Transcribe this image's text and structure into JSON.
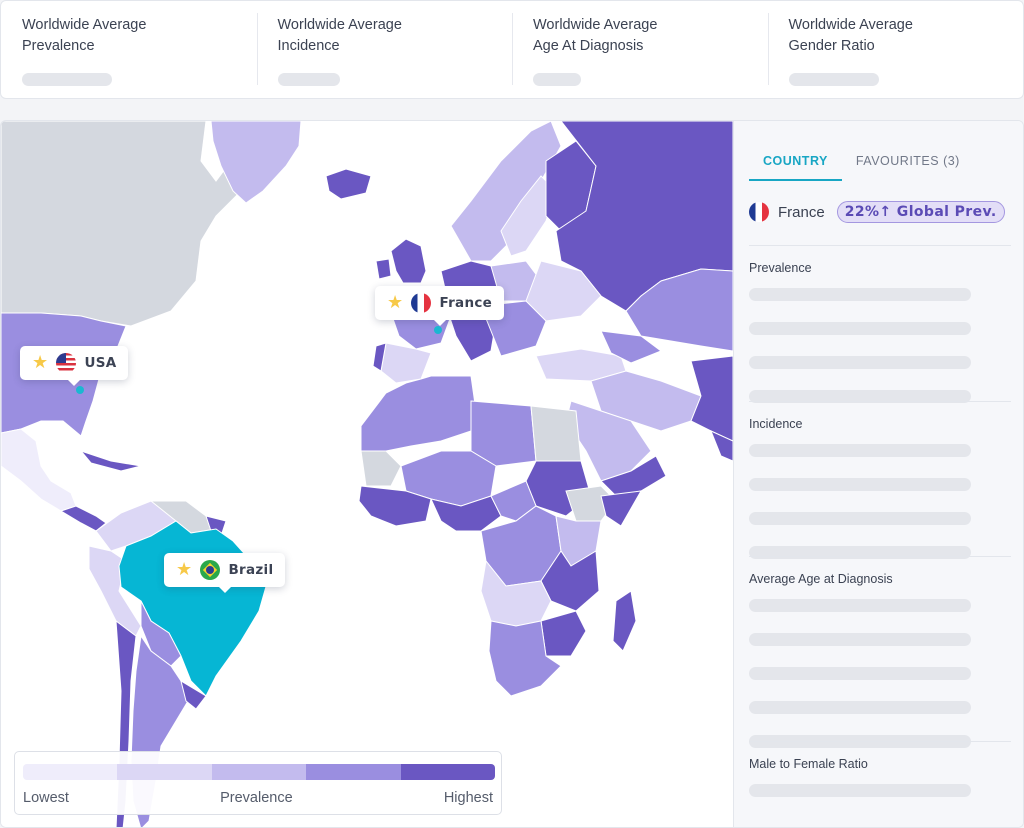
{
  "stats": [
    {
      "label": "Worldwide Average Prevalence"
    },
    {
      "label": "Worldwide Average Incidence"
    },
    {
      "label": "Worldwide Average Age At Diagnosis"
    },
    {
      "label": "Worldwide Average Gender Ratio"
    }
  ],
  "pins": {
    "usa": {
      "name": "USA"
    },
    "france": {
      "name": "France"
    },
    "brazil": {
      "name": "Brazil"
    }
  },
  "legend": {
    "low_label": "Lowest",
    "mid_label": "Prevalence",
    "high_label": "Highest",
    "colors": [
      "#efedfb",
      "#dcd7f5",
      "#c3bbee",
      "#9a8ee0",
      "#6a57c2"
    ]
  },
  "panel": {
    "tabs": [
      {
        "label": "COUNTRY",
        "active": true
      },
      {
        "label": "FAVOURITES (3)",
        "active": false
      }
    ],
    "country": {
      "name": "France",
      "chip": "22%↑ Global Prev."
    },
    "sections": [
      {
        "title": "Prevalence"
      },
      {
        "title": "Incidence"
      },
      {
        "title": "Average Age at Diagnosis"
      },
      {
        "title": "Male to Female Ratio"
      }
    ]
  },
  "colors": {
    "accent": "#18a6c4",
    "selected_country": "#06b6d4",
    "no_data": "#d4d8df",
    "ocean": "#ffffff"
  }
}
